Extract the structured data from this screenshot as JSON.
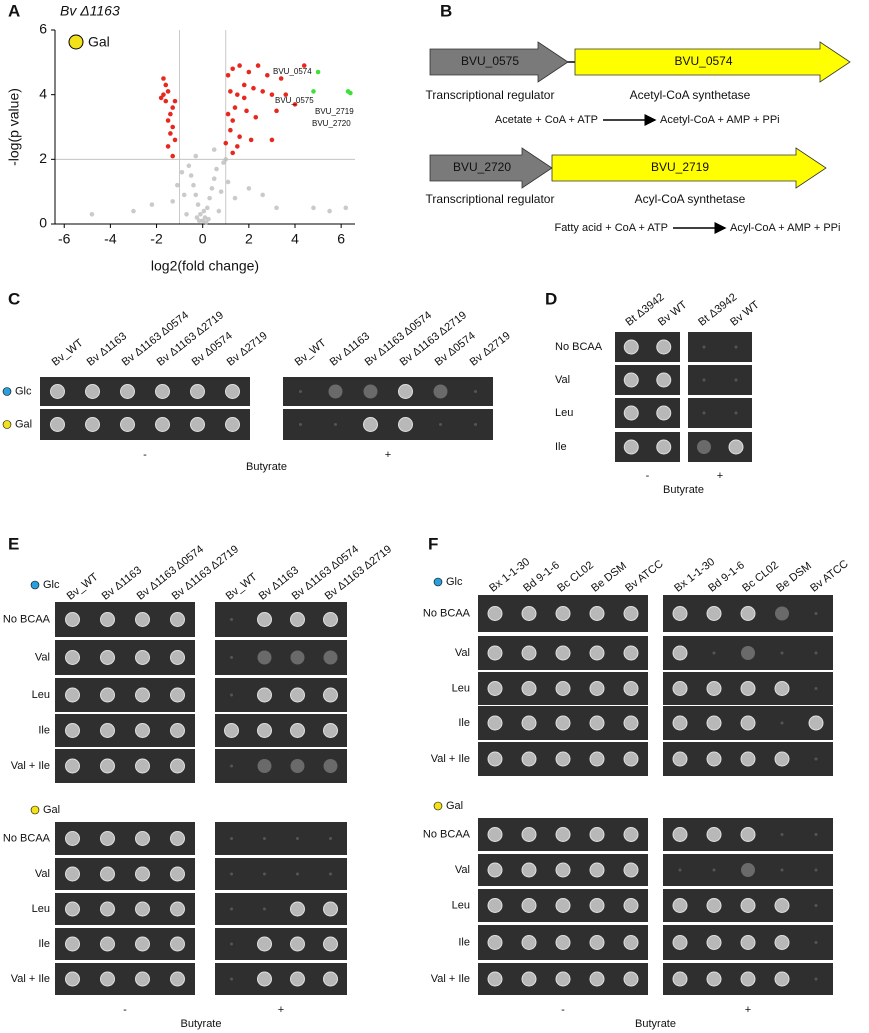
{
  "panel_labels": [
    "A",
    "B",
    "C",
    "D",
    "E",
    "F"
  ],
  "chart_data": {
    "type": "scatter",
    "title": "Bv Δ1163",
    "legend_marker": {
      "text": "Gal",
      "color": "#f3e21a"
    },
    "x_label": "log2(fold change)",
    "y_label": "-log(p value)",
    "xlim": [
      -6.4,
      6.6
    ],
    "ylim": [
      0,
      6
    ],
    "xticks": [
      -6,
      -4,
      -2,
      0,
      2,
      4,
      6
    ],
    "yticks": [
      0,
      2,
      4,
      6
    ],
    "vlines": [
      -1,
      1
    ],
    "hlines": [
      2
    ],
    "annotations": [
      "BVU_0574",
      "BVU_0575",
      "BVU_2719",
      "BVU_2720"
    ],
    "series": [
      {
        "color": "#bdbdbd",
        "x": [
          0,
          0.1,
          -0.1,
          0.2,
          -0.2,
          0.3,
          -0.3,
          0.4,
          -0.4,
          0.5,
          -0.5,
          0.6,
          -0.6,
          0.7,
          -0.7,
          0.8,
          -0.8,
          0.9,
          -0.9,
          1.1,
          -1.1,
          1.4,
          -1.3,
          2.0,
          -2.2,
          2.6,
          3.2,
          -3.0,
          4.8,
          -4.8,
          5.5,
          6.2,
          1.0,
          0.5,
          -0.3,
          0.15,
          -0.15,
          0.05,
          0.25,
          -0.25
        ],
        "values": [
          0.1,
          0.2,
          0.3,
          0.5,
          0.6,
          0.8,
          0.9,
          1.1,
          1.2,
          1.4,
          1.5,
          1.7,
          1.8,
          0.4,
          0.3,
          1.0,
          0.9,
          1.9,
          1.6,
          1.3,
          1.2,
          0.8,
          0.7,
          1.1,
          0.6,
          0.9,
          0.5,
          0.4,
          0.5,
          0.3,
          0.4,
          0.5,
          2.0,
          2.3,
          2.1,
          0.05,
          0.1,
          0.4,
          0.15,
          0.2
        ]
      },
      {
        "color": "#e8281e",
        "x": [
          -1.7,
          -1.6,
          -1.5,
          -1.8,
          -1.6,
          -1.3,
          -1.4,
          -1.5,
          -1.3,
          -1.4,
          -1.2,
          -1.7,
          -1.2,
          -1.5,
          -1.3,
          1.1,
          1.3,
          1.6,
          2.0,
          2.4,
          2.8,
          3.4,
          1.2,
          1.5,
          1.8,
          2.2,
          2.6,
          3.0,
          3.6,
          1.4,
          1.1,
          1.9,
          1.3,
          2.3,
          1.2,
          1.6,
          1.0,
          1.5,
          2.1,
          3.0,
          1.3,
          4.0,
          3.2,
          4.4,
          1.8
        ],
        "values": [
          4.5,
          4.3,
          4.1,
          3.9,
          3.8,
          3.6,
          3.4,
          3.2,
          3.0,
          2.8,
          2.6,
          4.0,
          3.8,
          2.4,
          2.1,
          4.6,
          4.8,
          4.9,
          4.7,
          4.9,
          4.6,
          4.5,
          4.1,
          4.0,
          3.9,
          4.2,
          4.1,
          4.0,
          4.0,
          3.6,
          3.4,
          3.5,
          3.2,
          3.3,
          2.9,
          2.7,
          2.5,
          2.4,
          2.6,
          2.6,
          2.2,
          3.7,
          3.5,
          4.9,
          4.3
        ]
      },
      {
        "color": "#3ee03a",
        "x": [
          5.0,
          4.8,
          6.3,
          6.4
        ],
        "values": [
          4.7,
          4.1,
          4.1,
          4.05
        ]
      }
    ]
  },
  "gene_diagram": [
    {
      "genes": [
        {
          "label": "BVU_0575",
          "color": "#7a7a7a"
        },
        {
          "label": "BVU_0574",
          "color": "#ffff00"
        }
      ],
      "descriptions": [
        "Transcriptional regulator",
        "Acetyl-CoA synthetase"
      ],
      "reaction": {
        "left": "Acetate + CoA + ATP",
        "right": "Acetyl-CoA + AMP + PPi"
      }
    },
    {
      "genes": [
        {
          "label": "BVU_2720",
          "color": "#7a7a7a"
        },
        {
          "label": "BVU_2719",
          "color": "#ffff00"
        }
      ],
      "descriptions": [
        "Transcriptional regulator",
        "Acyl-CoA synthetase"
      ],
      "reaction": {
        "left": "Fatty acid + CoA + ATP",
        "right": "Acyl-CoA + AMP + PPi"
      }
    }
  ],
  "plates": {
    "C": {
      "columns": [
        "Bv_WT",
        "Bv Δ1163",
        "Bv Δ1163 Δ0574",
        "Bv Δ1163 Δ2719",
        "Bv Δ0574",
        "Bv Δ2719"
      ],
      "rows": [
        {
          "label": "Glc",
          "color": "#2b9fd9"
        },
        {
          "label": "Gal",
          "color": "#f3e21a"
        }
      ],
      "conditions": [
        "-",
        "+"
      ],
      "condition_title": "Butyrate"
    },
    "D": {
      "columns": [
        "Bt Δ3942",
        "Bv WT"
      ],
      "rows": [
        "No BCAA",
        "Val",
        "Leu",
        "Ile"
      ],
      "conditions": [
        "-",
        "+"
      ],
      "condition_title": "Butyrate"
    },
    "E": {
      "columns": [
        "Bv_WT",
        "Bv Δ1163",
        "Bv Δ1163 Δ0574",
        "Bv Δ1163 Δ2719"
      ],
      "media": [
        {
          "label": "Glc",
          "color": "#2b9fd9"
        },
        {
          "label": "Gal",
          "color": "#f3e21a"
        }
      ],
      "rows": [
        "No BCAA",
        "Val",
        "Leu",
        "Ile",
        "Val + Ile"
      ],
      "conditions": [
        "-",
        "+"
      ],
      "condition_title": "Butyrate"
    },
    "F": {
      "columns": [
        "Bx 1-1-30",
        "Bd 9-1-6",
        "Bc CL02",
        "Be DSM",
        "Bv ATCC"
      ],
      "media": [
        {
          "label": "Glc",
          "color": "#2b9fd9"
        },
        {
          "label": "Gal",
          "color": "#f3e21a"
        }
      ],
      "rows": [
        "No BCAA",
        "Val",
        "Leu",
        "Ile",
        "Val + Ile"
      ],
      "conditions": [
        "-",
        "+"
      ],
      "condition_title": "Butyrate"
    }
  }
}
